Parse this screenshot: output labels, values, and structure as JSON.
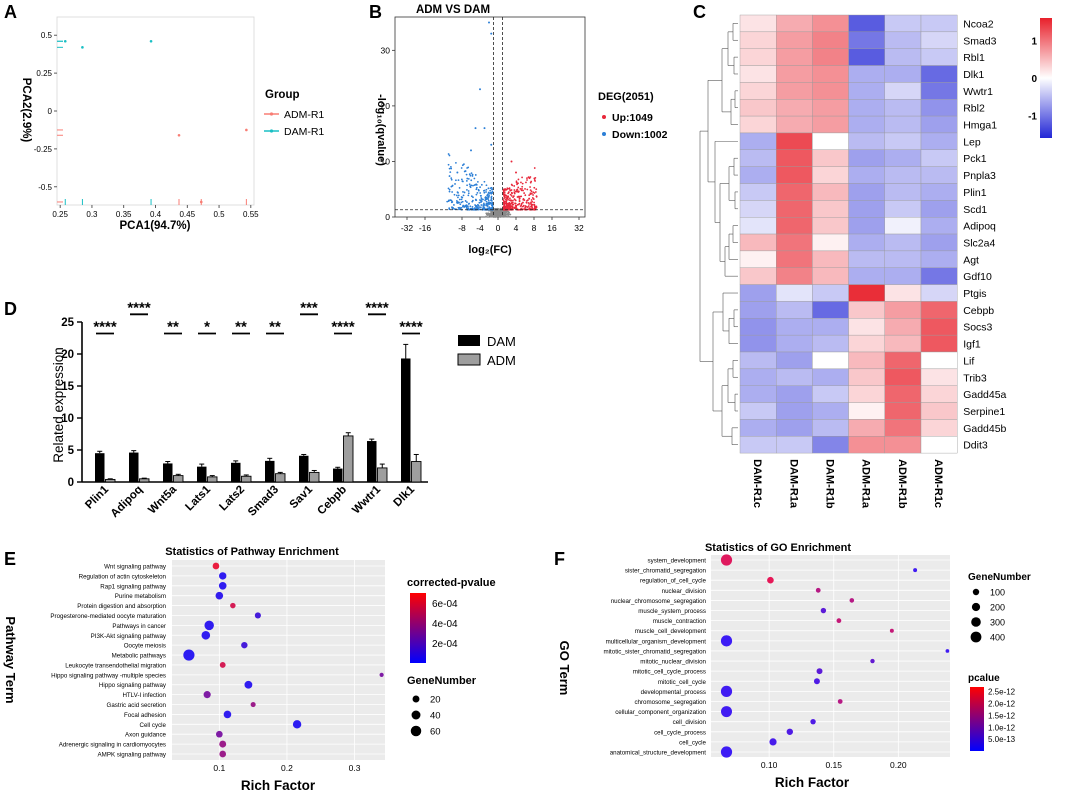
{
  "panel_letters": [
    "A",
    "B",
    "C",
    "D",
    "E",
    "F"
  ],
  "chart_data": [
    {
      "panel": "A",
      "type": "scatter",
      "title": "",
      "xlabel": "PCA1(94.7%)",
      "ylabel": "PCA2(2.9%)",
      "xlim": [
        0.245,
        0.555
      ],
      "ylim": [
        -0.62,
        0.62
      ],
      "xticks": [
        "0.25",
        "0.3",
        "0.35",
        "0.4",
        "0.45",
        "0.5",
        "0.55"
      ],
      "xtick_values": [
        0.25,
        0.3,
        0.35,
        0.4,
        0.45,
        0.5,
        0.55
      ],
      "yticks": [
        "0.5",
        "0.25",
        "0",
        "-0.25",
        "-0.5"
      ],
      "ytick_values": [
        0.5,
        0.25,
        0,
        -0.25,
        -0.5
      ],
      "legend_title": "Group",
      "legend": [
        {
          "name": "ADM-R1",
          "color": "#f87d74"
        },
        {
          "name": "DAM-R1",
          "color": "#19bfc4"
        }
      ],
      "series": [
        {
          "name": "ADM-R1",
          "color": "#f87d74",
          "points": [
            [
              0.437,
              -0.16
            ],
            [
              0.543,
              -0.125
            ],
            [
              0.472,
              -0.6
            ]
          ]
        },
        {
          "name": "DAM-R1",
          "color": "#19bfc4",
          "points": [
            [
              0.285,
              0.42
            ],
            [
              0.393,
              0.46
            ],
            [
              0.258,
              0.46
            ]
          ]
        }
      ]
    },
    {
      "panel": "B",
      "type": "scatter",
      "title": "ADM VS DAM",
      "xlabel": "log₂(FC)",
      "ylabel": "-log₁₀(qvalue)",
      "xlim": [
        -40,
        40
      ],
      "ylim": [
        0,
        36
      ],
      "xticks": [
        "-32",
        "-16",
        "-8",
        "-4",
        "0",
        "4",
        "8",
        "16",
        "32"
      ],
      "xtick_values": [
        -32,
        -16,
        -8,
        -4,
        0,
        4,
        8,
        16,
        32
      ],
      "yticks": [
        "0",
        "10",
        "20",
        "30"
      ],
      "ytick_values": [
        0,
        10,
        20,
        30
      ],
      "legend_title": "DEG(2051)",
      "legend": [
        {
          "name": "Up:1049",
          "color": "#e8273a"
        },
        {
          "name": "Down:1002",
          "color": "#2c7fd6"
        }
      ],
      "threshold_y": 1.3,
      "threshold_x": [
        -1,
        1
      ],
      "notable_points": [
        [
          -2,
          35
        ],
        [
          -1.5,
          33
        ],
        [
          -4,
          23
        ],
        [
          -5,
          16
        ],
        [
          -3,
          16
        ],
        [
          -1.5,
          13
        ],
        [
          -6,
          12
        ],
        [
          -9,
          8
        ],
        [
          3,
          10
        ],
        [
          4,
          8
        ],
        [
          7,
          7
        ]
      ]
    },
    {
      "panel": "C",
      "type": "heatmap",
      "columns": [
        "DAM-R1c",
        "DAM-R1a",
        "DAM-R1b",
        "ADM-R1a",
        "ADM-R1b",
        "ADM-R1c"
      ],
      "rows": [
        "Ncoa2",
        "Smad3",
        "Rbl1",
        "Dlk1",
        "Wwtr1",
        "Rbl2",
        "Hmga1",
        "Lep",
        "Pck1",
        "Pnpla3",
        "Plin1",
        "Scd1",
        "Adipoq",
        "Slc2a4",
        "Agt",
        "Gdf10",
        "Ptgis",
        "Cebpb",
        "Socs3",
        "Igf1",
        "Lif",
        "Trib3",
        "Gadd45a",
        "Serpine1",
        "Gadd45b",
        "Ddit3"
      ],
      "values": [
        [
          0.2,
          0.6,
          0.8,
          -1.2,
          -0.4,
          -0.4
        ],
        [
          0.3,
          0.7,
          0.9,
          -1.0,
          -0.5,
          -0.3
        ],
        [
          0.3,
          0.7,
          0.9,
          -1.2,
          -0.5,
          -0.4
        ],
        [
          0.2,
          0.7,
          0.8,
          -0.6,
          -0.6,
          -1.1
        ],
        [
          0.3,
          0.7,
          0.8,
          -0.6,
          -0.3,
          -1.0
        ],
        [
          0.4,
          0.6,
          0.7,
          -0.6,
          -0.5,
          -0.8
        ],
        [
          0.3,
          0.6,
          0.7,
          -0.6,
          -0.5,
          -0.7
        ],
        [
          -0.6,
          1.3,
          0.0,
          -0.5,
          -0.4,
          -0.6
        ],
        [
          -0.5,
          1.2,
          0.4,
          -0.7,
          -0.6,
          -0.4
        ],
        [
          -0.6,
          1.2,
          0.3,
          -0.6,
          -0.5,
          -0.5
        ],
        [
          -0.4,
          1.1,
          0.5,
          -0.7,
          -0.5,
          -0.6
        ],
        [
          -0.3,
          1.1,
          0.4,
          -0.7,
          -0.4,
          -0.7
        ],
        [
          -0.2,
          1.1,
          0.4,
          -0.7,
          -0.1,
          -0.6
        ],
        [
          0.5,
          1.0,
          0.1,
          -0.6,
          -0.5,
          -0.7
        ],
        [
          0.1,
          1.0,
          0.5,
          -0.5,
          -0.5,
          -0.6
        ],
        [
          0.4,
          0.9,
          0.5,
          -0.6,
          -0.6,
          -1.0
        ],
        [
          -0.7,
          -0.2,
          -0.4,
          1.5,
          0.2,
          -0.3
        ],
        [
          -0.7,
          -0.5,
          -1.1,
          0.4,
          0.7,
          1.1
        ],
        [
          -0.8,
          -0.6,
          -0.6,
          0.2,
          0.6,
          1.2
        ],
        [
          -0.8,
          -0.6,
          -0.5,
          0.3,
          0.5,
          1.2
        ],
        [
          -0.5,
          -0.7,
          0.0,
          0.5,
          1.1,
          0.0
        ],
        [
          -0.6,
          -0.5,
          -0.6,
          0.4,
          1.2,
          0.2
        ],
        [
          -0.6,
          -0.7,
          -0.4,
          0.3,
          1.1,
          0.3
        ],
        [
          -0.4,
          -0.7,
          -0.6,
          0.1,
          1.1,
          0.4
        ],
        [
          -0.6,
          -0.7,
          -0.5,
          0.6,
          1.0,
          0.3
        ],
        [
          -0.4,
          -0.4,
          -0.9,
          0.8,
          0.8,
          0.0
        ]
      ],
      "colorbar_ticks": [
        "1",
        "0",
        "-1"
      ],
      "colorbar_values": [
        1,
        0,
        -1
      ],
      "colorbar_range": [
        -1.6,
        1.6
      ]
    },
    {
      "panel": "D",
      "type": "bar",
      "categories": [
        "Plin1",
        "Adipoq",
        "Wnt5a",
        "Lats1",
        "Lats2",
        "Smad3",
        "Sav1",
        "Cebpb",
        "Wwtr1",
        "Dlk1"
      ],
      "series": [
        {
          "name": "DAM",
          "color": "#000000",
          "values": [
            4.5,
            4.6,
            2.9,
            2.4,
            3.0,
            3.3,
            4.1,
            2.1,
            6.4,
            19.3
          ],
          "errors": [
            0.3,
            0.3,
            0.3,
            0.4,
            0.3,
            0.4,
            0.2,
            0.2,
            0.3,
            2.2
          ]
        },
        {
          "name": "ADM",
          "color": "#9e9e9e",
          "values": [
            0.4,
            0.5,
            1.0,
            0.8,
            0.9,
            1.3,
            1.5,
            7.2,
            2.2,
            3.2
          ],
          "errors": [
            0.1,
            0.1,
            0.2,
            0.2,
            0.2,
            0.2,
            0.3,
            0.5,
            0.6,
            1.1
          ]
        }
      ],
      "significance": [
        "****",
        "****",
        "**",
        "*",
        "**",
        "**",
        "***",
        "****",
        "****",
        "****"
      ],
      "sig_y": [
        23.2,
        26.2,
        23.2,
        23.2,
        23.2,
        23.2,
        26.2,
        23.2,
        26.2,
        23.2
      ],
      "title": "",
      "xlabel": "",
      "ylabel": "Related expression",
      "ylim": [
        0,
        25
      ],
      "yticks": [
        "0",
        "5",
        "10",
        "15",
        "20",
        "25"
      ],
      "ytick_values": [
        0,
        5,
        10,
        15,
        20,
        25
      ]
    },
    {
      "panel": "E",
      "type": "scatter",
      "title": "Statistics of Pathway Enrichment",
      "xlabel": "Rich Factor",
      "ylabel": "Pathway Term",
      "xlim": [
        0.03,
        0.345
      ],
      "xticks": [
        "0.1",
        "0.2",
        "0.3"
      ],
      "xtick_values": [
        0.1,
        0.2,
        0.3
      ],
      "terms": [
        "Wnt signaling pathway",
        "Regulation of actin cytoskeleton",
        "Rap1 signaling pathway",
        "Purine metabolism",
        "Protein digestion and absorption",
        "Progesterone-mediated oocyte maturation",
        "Pathways in cancer",
        "PI3K-Akt signaling pathway",
        "Oocyte meiosis",
        "Metabolic pathways",
        "Leukocyte transendothelial migration",
        "Hippo signaling pathway -multiple species",
        "Hippo signaling pathway",
        "HTLV-I infection",
        "Gastric acid secretion",
        "Focal adhesion",
        "Cell cycle",
        "Axon guidance",
        "Adrenergic signaling in cardiomyocytes",
        "AMPK signaling pathway"
      ],
      "rich_factor": [
        0.095,
        0.105,
        0.105,
        0.1,
        0.12,
        0.157,
        0.085,
        0.08,
        0.137,
        0.055,
        0.105,
        0.34,
        0.143,
        0.082,
        0.15,
        0.112,
        0.215,
        0.1,
        0.105,
        0.105
      ],
      "gene_number": [
        18,
        24,
        26,
        26,
        10,
        14,
        46,
        36,
        16,
        70,
        12,
        4,
        28,
        22,
        8,
        26,
        34,
        18,
        20,
        18
      ],
      "pvalue": [
        0.00068,
        2e-05,
        2e-05,
        3e-05,
        0.0006,
        0.0001,
        2e-05,
        2e-05,
        0.0001,
        1e-05,
        0.0006,
        0.0003,
        2e-05,
        0.0003,
        0.0004,
        2e-05,
        1e-05,
        0.0003,
        0.0004,
        0.0004
      ],
      "legend_color_title": "corrected-pvalue",
      "legend_color_ticks": [
        "6e-04",
        "4e-04",
        "2e-04"
      ],
      "legend_color_values": [
        0.0006,
        0.0004,
        0.0002
      ],
      "legend_color_range": [
        0,
        0.0007
      ],
      "legend_size_title": "GeneNumber",
      "legend_size_ticks": [
        "20",
        "40",
        "60"
      ],
      "legend_size_values": [
        20,
        40,
        60
      ]
    },
    {
      "panel": "F",
      "type": "scatter",
      "title": "Statistics of GO Enrichment",
      "xlabel": "Rich Factor",
      "ylabel": "GO Term",
      "xlim": [
        0.055,
        0.24
      ],
      "xticks": [
        "0.10",
        "0.15",
        "0.20"
      ],
      "xtick_values": [
        0.1,
        0.15,
        0.2
      ],
      "terms": [
        "system_development",
        "sister_chromatid_segregation",
        "regulation_of_cell_cycle",
        "nuclear_division",
        "nuclear_chromosome_segregation",
        "muscle_system_process",
        "muscle_contraction",
        "muscle_cell_development",
        "multicellular_organism_development",
        "mitotic_sister_chromatid_segregation",
        "mitotic_nuclear_division",
        "mitotic_cell_cycle_process",
        "mitotic_cell_cycle",
        "developmental_process",
        "chromosome_segregation",
        "cellular_component_organization",
        "cell_division",
        "cell_cycle_process",
        "cell_cycle",
        "anatomical_structure_development"
      ],
      "rich_factor": [
        0.067,
        0.213,
        0.101,
        0.138,
        0.164,
        0.142,
        0.154,
        0.195,
        0.067,
        0.238,
        0.18,
        0.139,
        0.137,
        0.067,
        0.155,
        0.067,
        0.134,
        0.116,
        0.103,
        0.067
      ],
      "gene_number": [
        440,
        20,
        110,
        40,
        35,
        60,
        40,
        20,
        440,
        15,
        30,
        80,
        80,
        440,
        40,
        420,
        60,
        100,
        140,
        440
      ],
      "pvalue": [
        2.4e-12,
        1e-13,
        2.5e-12,
        1.8e-12,
        1.8e-12,
        5e-13,
        2e-12,
        2e-12,
        5e-14,
        1e-13,
        6e-13,
        5e-13,
        3e-13,
        1e-13,
        1.8e-12,
        1e-13,
        3e-13,
        3e-13,
        2e-13,
        5e-14
      ],
      "legend_size_title": "GeneNumber",
      "legend_size_ticks": [
        "100",
        "200",
        "300",
        "400"
      ],
      "legend_size_values": [
        100,
        200,
        300,
        400
      ],
      "legend_color_title": "pcalue",
      "legend_color_ticks": [
        "2.5e-12",
        "2.0e-12",
        "1.5e-12",
        "1.0e-12",
        "5.0e-13"
      ],
      "legend_color_values": [
        2.5e-12,
        2e-12,
        1.5e-12,
        1e-12,
        5e-13
      ],
      "legend_color_range": [
        0,
        2.7e-12
      ]
    }
  ]
}
